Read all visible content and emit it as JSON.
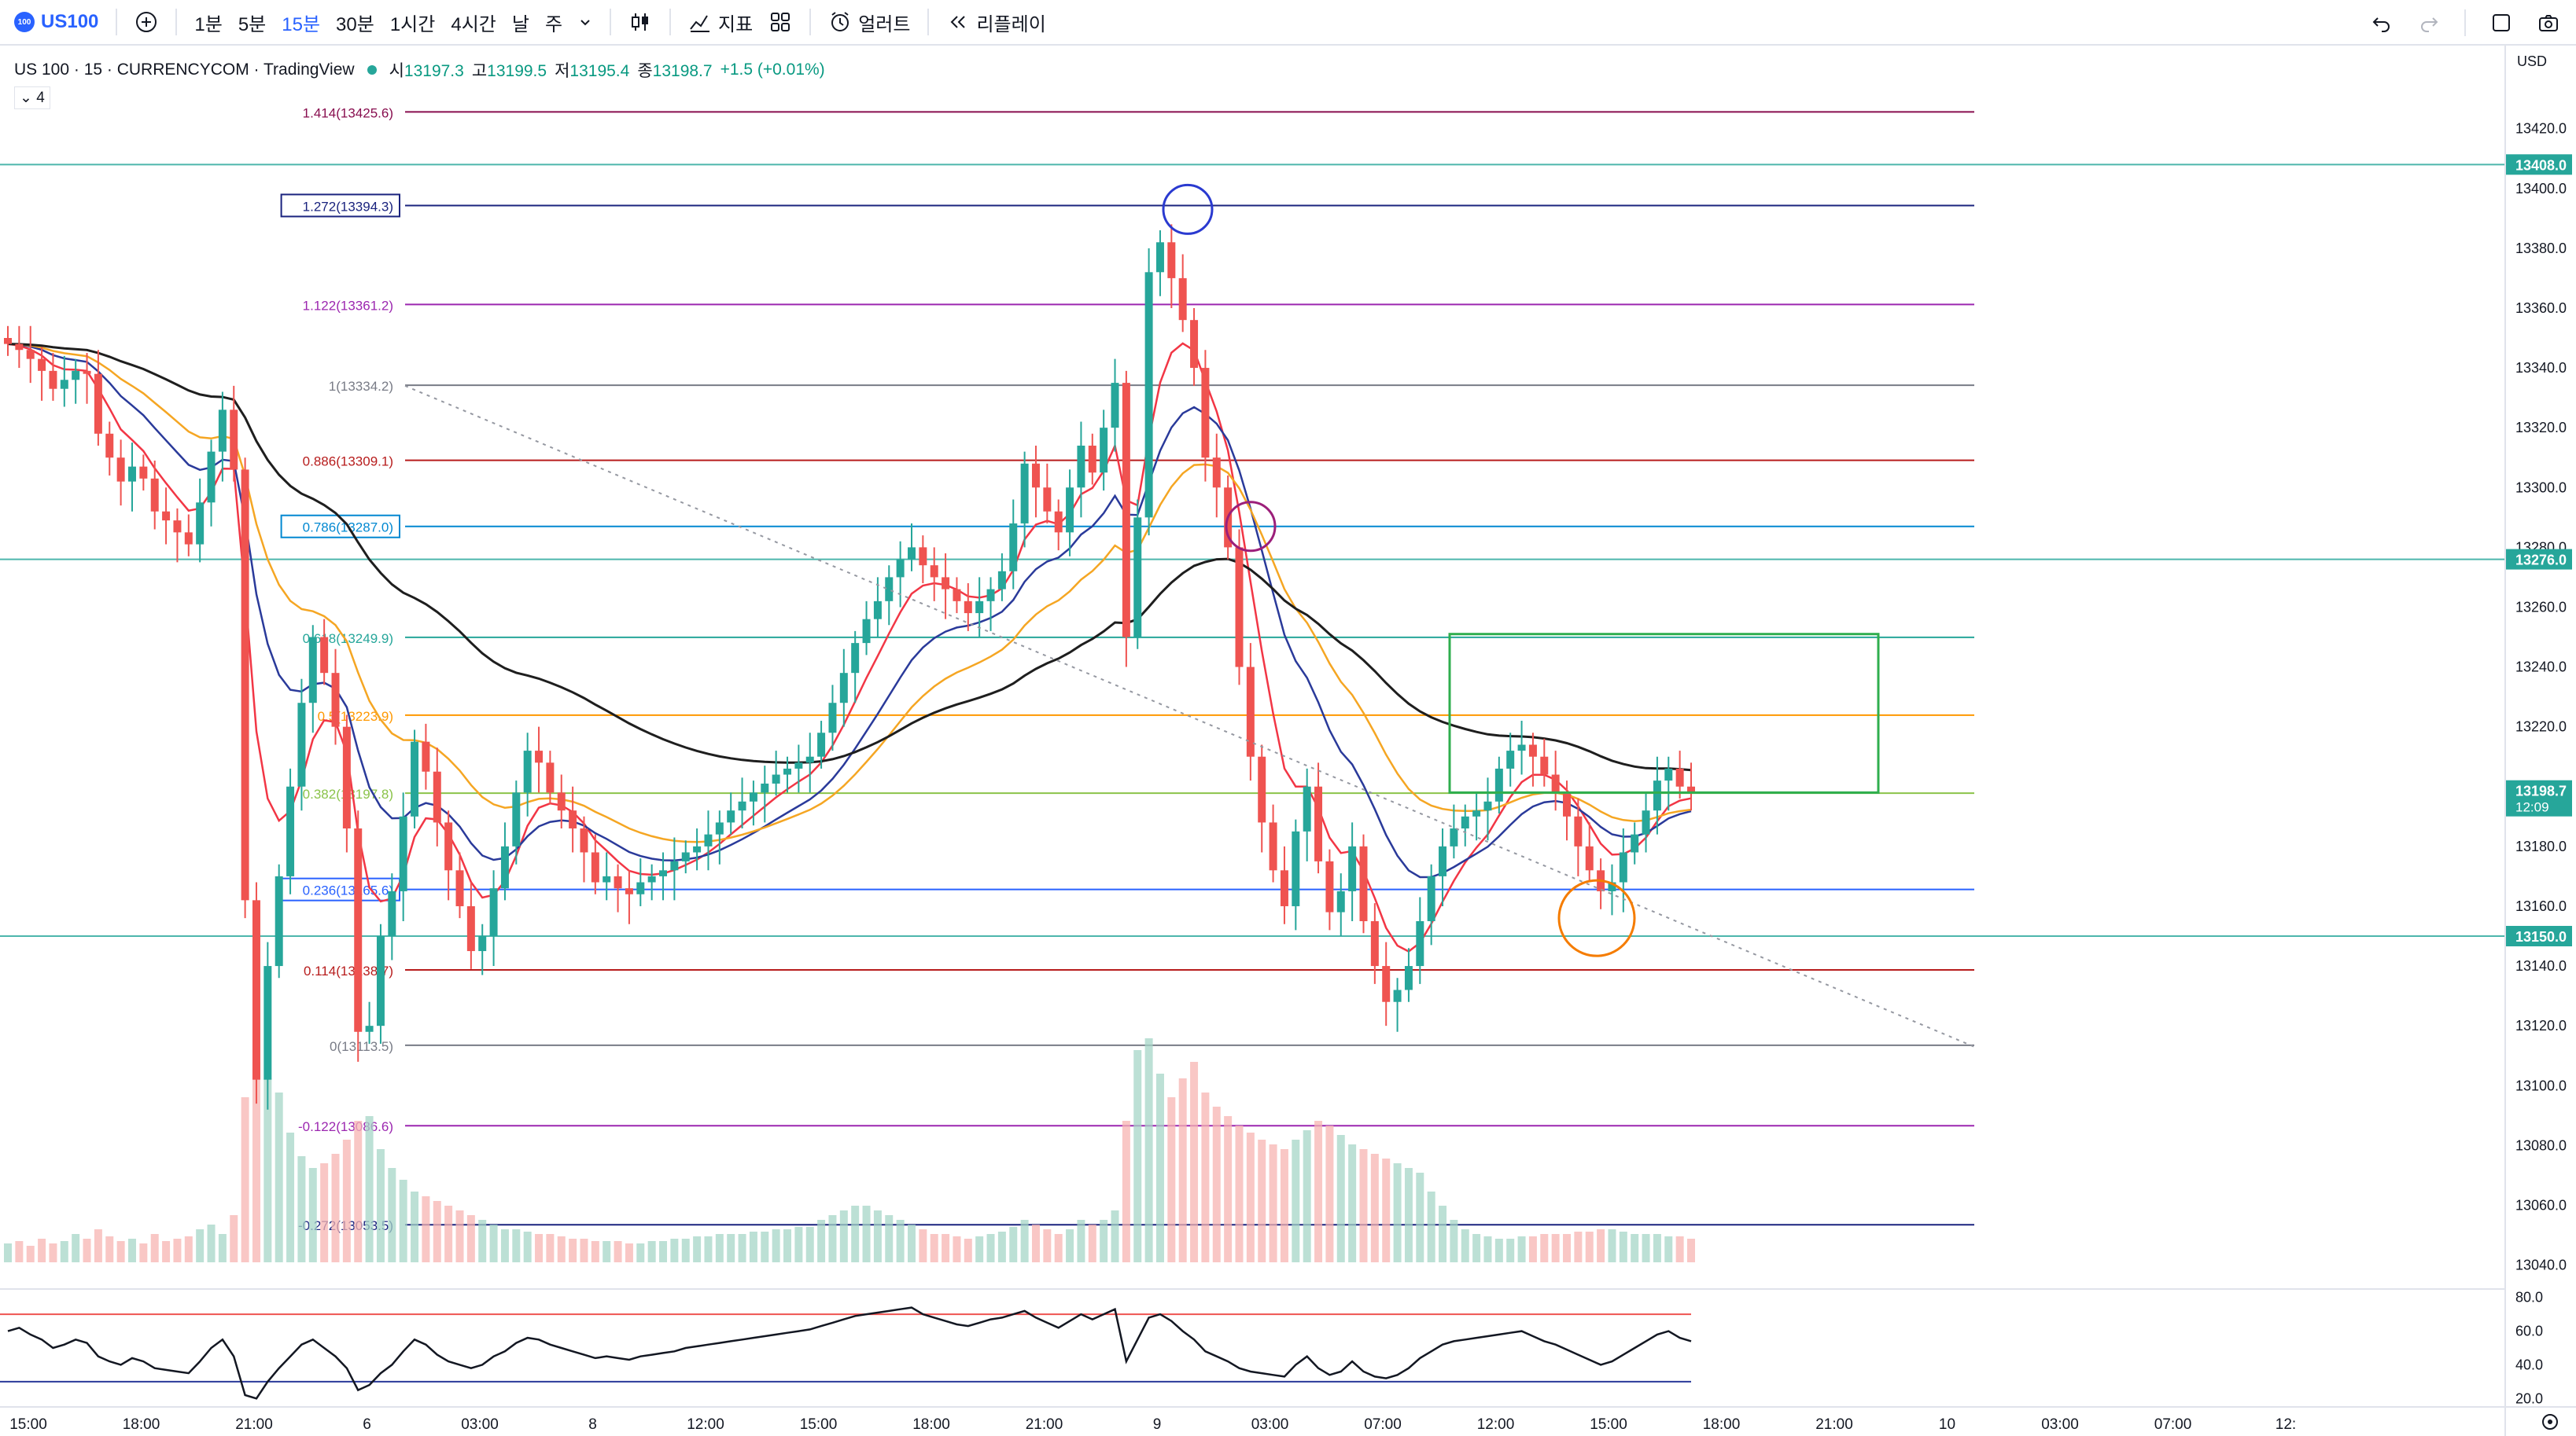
{
  "toolbar": {
    "symbol": "US100",
    "symbol_badge": "100",
    "intervals": [
      {
        "label": "1분",
        "active": false
      },
      {
        "label": "5분",
        "active": false
      },
      {
        "label": "15분",
        "active": true
      },
      {
        "label": "30분",
        "active": false
      },
      {
        "label": "1시간",
        "active": false
      },
      {
        "label": "4시간",
        "active": false
      },
      {
        "label": "날",
        "active": false
      },
      {
        "label": "주",
        "active": false
      }
    ],
    "indicators_label": "지표",
    "alert_label": "얼러트",
    "replay_label": "리플레이"
  },
  "legend": {
    "title": "US 100 · 15 · CURRENCYCOM · TradingView",
    "open_label": "시",
    "open": "13197.3",
    "high_label": "고",
    "high": "13199.5",
    "low_label": "저",
    "low": "13195.4",
    "close_label": "종",
    "close": "13198.7",
    "change": "+1.5 (+0.01%)",
    "indicator_count": "4"
  },
  "price_axis": {
    "currency": "USD",
    "ticks": [
      "13420.0",
      "13400.0",
      "13380.0",
      "13360.0",
      "13340.0",
      "13320.0",
      "13300.0",
      "13280.0",
      "13260.0",
      "13240.0",
      "13220.0",
      "13200.0",
      "13180.0",
      "13160.0",
      "13140.0",
      "13120.0",
      "13100.0",
      "13080.0",
      "13060.0",
      "13040.0"
    ],
    "badges": [
      {
        "label": "13408.0",
        "color": "#26a69a"
      },
      {
        "label": "13276.0",
        "color": "#26a69a"
      },
      {
        "label": "13198.7",
        "sub": "12:09",
        "color": "#26a69a"
      },
      {
        "label": "13150.0",
        "color": "#26a69a"
      }
    ],
    "rsi_ticks": [
      "80.0",
      "60.0",
      "40.0",
      "20.0"
    ]
  },
  "time_axis": [
    "15:00",
    "18:00",
    "21:00",
    "6",
    "03:00",
    "8",
    "12:00",
    "15:00",
    "18:00",
    "21:00",
    "9",
    "03:00",
    "07:00",
    "12:00",
    "15:00",
    "18:00",
    "21:00",
    "10",
    "03:00",
    "07:00",
    "12:"
  ],
  "fib_levels": [
    {
      "label": "1.414(13425.6)",
      "price": 13425.6,
      "color": "#880e4f",
      "boxed": false
    },
    {
      "label": "1.272(13394.3)",
      "price": 13394.3,
      "color": "#1a237e",
      "boxed": true
    },
    {
      "label": "1.122(13361.2)",
      "price": 13361.2,
      "color": "#9c27b0",
      "boxed": false
    },
    {
      "label": "1(13334.2)",
      "price": 13334.2,
      "color": "#787b86",
      "boxed": false
    },
    {
      "label": "0.886(13309.1)",
      "price": 13309.1,
      "color": "#b71c1c",
      "boxed": false
    },
    {
      "label": "0.786(13287.0)",
      "price": 13287.0,
      "color": "#0288d1",
      "boxed": true
    },
    {
      "label": "0.618(13249.9)",
      "price": 13249.9,
      "color": "#26a69a",
      "boxed": false
    },
    {
      "label": "0.5(13223.9)",
      "price": 13223.9,
      "color": "#ff9800",
      "boxed": false
    },
    {
      "label": "0.382(13197.8)",
      "price": 13197.8,
      "color": "#8bc34a",
      "boxed": false
    },
    {
      "label": "0.236(13165.6)",
      "price": 13165.6,
      "color": "#2962ff",
      "boxed": true
    },
    {
      "label": "0.114(13138.7)",
      "price": 13138.7,
      "color": "#b71c1c",
      "boxed": false
    },
    {
      "label": "0(13113.5)",
      "price": 13113.5,
      "color": "#787b86",
      "boxed": false
    },
    {
      "label": "-0.122(13086.6)",
      "price": 13086.6,
      "color": "#9c27b0",
      "boxed": false
    },
    {
      "label": "-0.272(13053.5)",
      "price": 13053.5,
      "color": "#1a237e",
      "boxed": false
    }
  ],
  "horizontal_lines": [
    13408.0,
    13276.0,
    13150.0
  ],
  "colors": {
    "up": "#26a69a",
    "down": "#ef5350",
    "rsi": "#131722",
    "ema_fast": "#f23645",
    "ema_mid": "#2a3a9a",
    "ema_slow": "#f5a623",
    "ema_long": "#1e1e1e",
    "zone": "#2fae4e"
  },
  "chart_data": {
    "type": "candlestick",
    "price_range": [
      13032,
      13432
    ],
    "closes": [
      13348,
      13346,
      13343,
      13339,
      13333,
      13336,
      13339,
      13338,
      13318,
      13310,
      13302,
      13307,
      13303,
      13292,
      13289,
      13285,
      13281,
      13295,
      13312,
      13326,
      13306,
      13162,
      13102,
      13140,
      13170,
      13200,
      13228,
      13250,
      13238,
      13220,
      13186,
      13118,
      13120,
      13150,
      13165,
      13190,
      13215,
      13205,
      13188,
      13172,
      13160,
      13145,
      13150,
      13166,
      13180,
      13198,
      13212,
      13208,
      13198,
      13192,
      13186,
      13178,
      13168,
      13170,
      13166,
      13164,
      13168,
      13170,
      13172,
      13175,
      13178,
      13180,
      13184,
      13188,
      13192,
      13195,
      13198,
      13201,
      13204,
      13206,
      13208,
      13210,
      13218,
      13228,
      13238,
      13248,
      13256,
      13262,
      13270,
      13276,
      13280,
      13274,
      13270,
      13266,
      13262,
      13258,
      13262,
      13266,
      13272,
      13288,
      13308,
      13300,
      13292,
      13285,
      13300,
      13314,
      13305,
      13320,
      13335,
      13250,
      13290,
      13372,
      13382,
      13370,
      13356,
      13340,
      13310,
      13300,
      13280,
      13240,
      13210,
      13188,
      13172,
      13160,
      13185,
      13200,
      13175,
      13158,
      13165,
      13180,
      13155,
      13140,
      13128,
      13132,
      13140,
      13155,
      13170,
      13180,
      13186,
      13190,
      13192,
      13195,
      13206,
      13212,
      13214,
      13210,
      13204,
      13198,
      13190,
      13180,
      13172,
      13165,
      13168,
      13178,
      13184,
      13192,
      13202,
      13206,
      13200,
      13198
    ],
    "rsi_range": [
      15,
      85
    ],
    "rsi": [
      60,
      62,
      58,
      55,
      50,
      52,
      55,
      53,
      45,
      42,
      40,
      44,
      42,
      38,
      37,
      36,
      35,
      42,
      50,
      55,
      45,
      22,
      20,
      30,
      38,
      45,
      52,
      55,
      50,
      45,
      38,
      25,
      28,
      35,
      40,
      48,
      55,
      52,
      46,
      42,
      40,
      38,
      40,
      45,
      48,
      53,
      56,
      55,
      52,
      50,
      48,
      46,
      44,
      45,
      44,
      43,
      45,
      46,
      47,
      48,
      50,
      51,
      52,
      53,
      54,
      55,
      56,
      57,
      58,
      59,
      60,
      61,
      63,
      65,
      67,
      69,
      70,
      71,
      72,
      73,
      74,
      70,
      68,
      66,
      64,
      63,
      65,
      67,
      68,
      70,
      72,
      68,
      65,
      62,
      66,
      70,
      67,
      70,
      73,
      42,
      55,
      68,
      70,
      66,
      60,
      55,
      48,
      45,
      42,
      38,
      36,
      35,
      34,
      33,
      40,
      45,
      38,
      34,
      36,
      42,
      36,
      33,
      32,
      34,
      38,
      44,
      48,
      52,
      54,
      55,
      56,
      57,
      58,
      59,
      60,
      57,
      54,
      52,
      49,
      46,
      43,
      40,
      42,
      46,
      50,
      54,
      58,
      60,
      56,
      54
    ],
    "volume": [
      8,
      9,
      7,
      10,
      8,
      9,
      12,
      10,
      14,
      11,
      9,
      10,
      8,
      12,
      9,
      10,
      11,
      14,
      16,
      12,
      20,
      70,
      85,
      78,
      72,
      55,
      45,
      40,
      42,
      46,
      52,
      60,
      62,
      48,
      40,
      35,
      30,
      28,
      26,
      24,
      22,
      20,
      18,
      16,
      14,
      14,
      13,
      12,
      12,
      11,
      10,
      10,
      9,
      9,
      9,
      8,
      8,
      9,
      9,
      10,
      10,
      11,
      11,
      12,
      12,
      12,
      13,
      13,
      14,
      14,
      15,
      15,
      18,
      20,
      22,
      24,
      24,
      22,
      20,
      18,
      16,
      14,
      12,
      12,
      11,
      10,
      11,
      12,
      13,
      15,
      18,
      16,
      14,
      12,
      14,
      18,
      16,
      18,
      22,
      60,
      90,
      95,
      80,
      70,
      78,
      85,
      72,
      66,
      62,
      58,
      55,
      52,
      50,
      48,
      52,
      56,
      60,
      58,
      54,
      50,
      48,
      46,
      44,
      42,
      40,
      38,
      30,
      24,
      18,
      14,
      12,
      11,
      10,
      10,
      11,
      11,
      12,
      12,
      12,
      13,
      13,
      14,
      14,
      13,
      12,
      12,
      12,
      11,
      11,
      10
    ]
  }
}
